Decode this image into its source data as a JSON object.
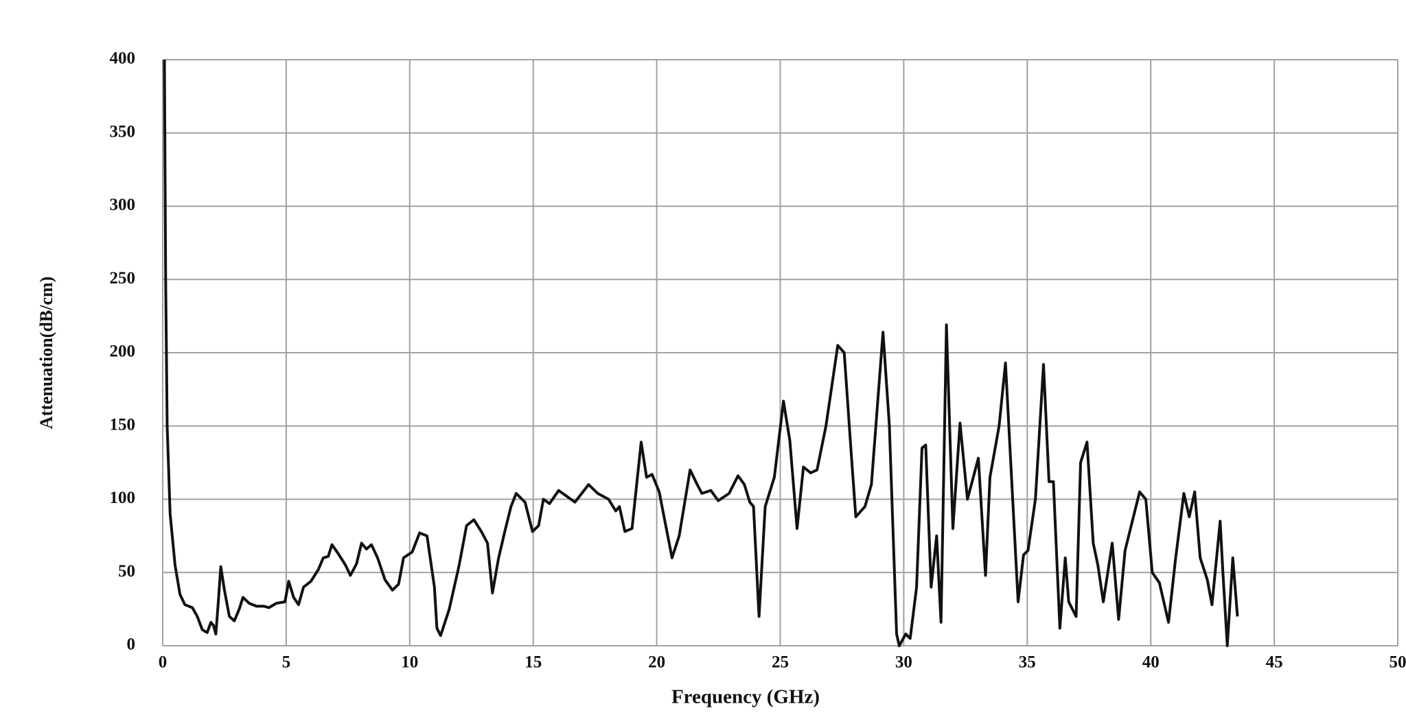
{
  "chart_data": {
    "type": "line",
    "x_label": "Frequency (GHz)",
    "y_label": "Attenuation(dB/cm)",
    "x": [
      0.07,
      0.12,
      0.18,
      0.3,
      0.5,
      0.7,
      0.9,
      1.2,
      1.4,
      1.6,
      1.8,
      1.95,
      2.05,
      2.15,
      2.25,
      2.35,
      2.5,
      2.7,
      2.9,
      3.1,
      3.25,
      3.5,
      3.8,
      4.1,
      4.3,
      4.6,
      4.95,
      5.1,
      5.3,
      5.5,
      5.7,
      6.0,
      6.3,
      6.5,
      6.7,
      6.85,
      7.1,
      7.4,
      7.6,
      7.85,
      8.05,
      8.25,
      8.45,
      8.7,
      9.0,
      9.3,
      9.55,
      9.75,
      10.1,
      10.4,
      10.7,
      11.0,
      11.1,
      11.25,
      11.6,
      12.0,
      12.3,
      12.6,
      12.9,
      13.15,
      13.35,
      13.6,
      13.85,
      14.1,
      14.31,
      14.67,
      14.97,
      15.22,
      15.41,
      15.66,
      16.03,
      16.69,
      17.24,
      17.61,
      18.05,
      18.34,
      18.49,
      18.71,
      19.0,
      19.37,
      19.59,
      19.81,
      20.1,
      20.62,
      20.91,
      21.35,
      21.64,
      21.83,
      22.19,
      22.49,
      22.93,
      23.29,
      23.55,
      23.77,
      23.92,
      24.14,
      24.39,
      24.76,
      25.13,
      25.39,
      25.68,
      25.94,
      26.23,
      26.49,
      26.85,
      27.33,
      27.59,
      27.88,
      28.06,
      28.43,
      28.69,
      29.16,
      29.42,
      29.71,
      29.82,
      30.08,
      30.26,
      30.52,
      30.74,
      30.89,
      31.11,
      31.33,
      31.51,
      31.73,
      31.99,
      32.28,
      32.58,
      33.02,
      33.31,
      33.49,
      33.86,
      34.12,
      34.41,
      34.63,
      34.85,
      35.03,
      35.33,
      35.66,
      35.88,
      36.06,
      36.32,
      36.54,
      36.68,
      36.98,
      37.16,
      37.42,
      37.67,
      37.86,
      38.08,
      38.44,
      38.7,
      38.96,
      39.18,
      39.55,
      39.8,
      40.06,
      40.35,
      40.72,
      41.01,
      41.34,
      41.56,
      41.78,
      42.0,
      42.29,
      42.48,
      42.81,
      42.92,
      43.1,
      43.32,
      43.51
    ],
    "values": [
      400,
      250,
      150,
      90,
      55,
      35,
      28,
      26,
      20,
      11,
      9,
      16,
      14,
      8,
      30,
      54,
      38,
      20,
      17,
      25,
      33,
      29,
      27,
      27,
      26,
      29,
      30,
      44,
      33,
      28,
      40,
      44,
      52,
      60,
      61,
      69,
      63,
      55,
      48,
      56,
      70,
      66,
      69,
      60,
      45,
      38,
      42,
      60,
      64,
      77,
      75,
      40,
      12,
      7,
      25,
      55,
      82,
      86,
      78,
      70,
      36,
      60,
      78,
      95,
      104,
      98,
      78,
      82,
      100,
      97,
      106,
      98,
      110,
      104,
      100,
      92,
      95,
      78,
      80,
      139,
      115,
      117,
      105,
      60,
      75,
      120,
      110,
      104,
      106,
      99,
      104,
      116,
      110,
      98,
      95,
      20,
      95,
      115,
      167,
      140,
      80,
      122,
      118,
      120,
      150,
      205,
      200,
      130,
      88,
      95,
      110,
      214,
      150,
      8,
      0,
      8,
      5,
      40,
      135,
      137,
      40,
      75,
      16,
      219,
      80,
      152,
      100,
      128,
      48,
      115,
      150,
      193,
      100,
      30,
      62,
      65,
      100,
      192,
      112,
      112,
      12,
      60,
      30,
      20,
      125,
      139,
      70,
      55,
      30,
      70,
      18,
      65,
      80,
      105,
      100,
      50,
      43,
      16,
      60,
      104,
      88,
      105,
      60,
      45,
      28,
      85,
      50,
      0,
      60,
      20
    ],
    "color": "#111111",
    "xlim": [
      0,
      50
    ],
    "xticks": [
      0,
      5,
      10,
      15,
      20,
      25,
      30,
      35,
      40,
      45,
      50
    ],
    "ylim": [
      0,
      400
    ],
    "yticks": [
      0,
      50,
      100,
      150,
      200,
      250,
      300,
      350,
      400
    ],
    "grid": true
  }
}
